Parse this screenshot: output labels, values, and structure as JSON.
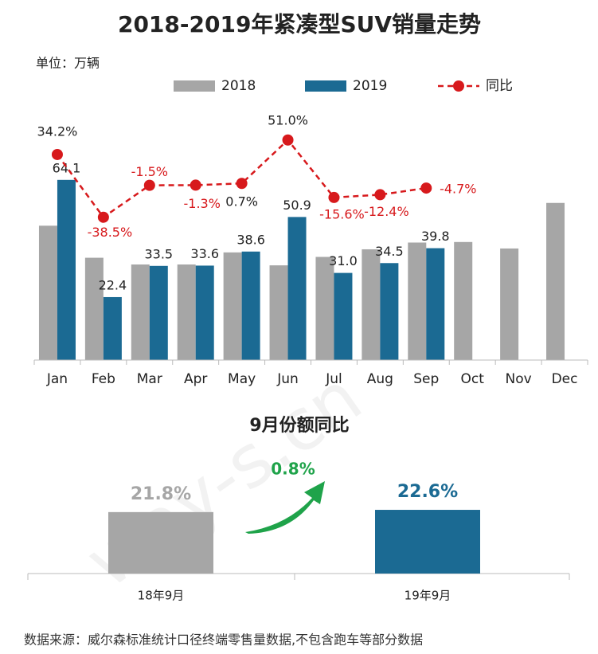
{
  "chart_data": [
    {
      "type": "bar",
      "title": "2018-2019年紧凑型SUV销量走势",
      "unit_label": "单位：万辆",
      "categories": [
        "Jan",
        "Feb",
        "Mar",
        "Apr",
        "May",
        "Jun",
        "Jul",
        "Aug",
        "Sep",
        "Oct",
        "Nov",
        "Dec"
      ],
      "series": [
        {
          "name": "2018",
          "color": "#a6a6a6",
          "values": [
            47.8,
            36.4,
            34.0,
            34.0,
            38.3,
            33.7,
            36.7,
            39.4,
            41.8,
            42.0,
            39.7,
            55.9
          ]
        },
        {
          "name": "2019",
          "color": "#1b6a93",
          "values": [
            64.1,
            22.4,
            33.5,
            33.6,
            38.6,
            50.9,
            31.0,
            34.5,
            39.8,
            null,
            null,
            null
          ],
          "value_labels": [
            "64.1",
            "22.4",
            "33.5",
            "33.6",
            "38.6",
            "50.9",
            "31.0",
            "34.5",
            "39.8",
            null,
            null,
            null
          ]
        },
        {
          "name": "同比",
          "color": "#d7191c",
          "type": "line",
          "axis": "y2",
          "values": [
            34.2,
            -38.5,
            -1.5,
            -1.3,
            0.7,
            51.0,
            -15.6,
            -12.4,
            -4.7,
            null,
            null,
            null
          ],
          "value_labels": [
            "34.2%",
            "-38.5%",
            "-1.5%",
            "-1.3%",
            "0.7%",
            "51.0%",
            "-15.6%",
            "-12.4%",
            "-4.7%",
            null,
            null,
            null
          ]
        }
      ],
      "ylim": [
        0,
        70
      ],
      "y2lim": [
        -60,
        60
      ],
      "legend": "top",
      "grid": false
    },
    {
      "type": "bar",
      "title": "9月份额同比",
      "categories": [
        "18年9月",
        "19年9月"
      ],
      "values": [
        21.8,
        22.6
      ],
      "value_labels": [
        "21.8%",
        "22.6%"
      ],
      "colors": [
        "#a6a6a6",
        "#1b6a93"
      ],
      "ylim": [
        0,
        26
      ],
      "annotation": "0.8%",
      "annotation_color": "#1fa34a"
    }
  ],
  "source": "数据来源：威尔森标准统计口径终端零售量数据,不包含跑车等部分数据",
  "watermark": "way-s.cn"
}
